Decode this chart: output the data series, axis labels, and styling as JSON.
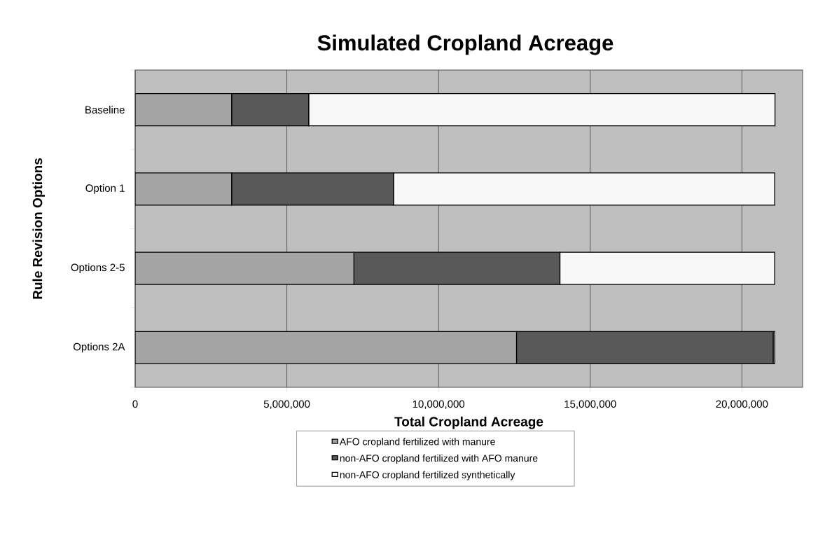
{
  "chart_data": {
    "type": "bar",
    "orientation": "horizontal",
    "stacked": true,
    "title": "Simulated Cropland Acreage",
    "xlabel": "Total Cropland Acreage",
    "ylabel": "Rule Revision Options",
    "categories": [
      "Baseline",
      "Option 1",
      "Options 2-5",
      "Options 2A"
    ],
    "series": [
      {
        "name": "AFO cropland fertilized with manure",
        "color": "#a4a4a4",
        "values": [
          3180000,
          3180000,
          7210000,
          12570000
        ]
      },
      {
        "name": "non-AFO cropland fertilized with AFO manure",
        "color": "#595959",
        "values": [
          2540000,
          5340000,
          6790000,
          8460000
        ]
      },
      {
        "name": "non-AFO cropland fertilized synthetically",
        "color": "#f8f8f8",
        "values": [
          15370000,
          12560000,
          7080000,
          50000
        ]
      }
    ],
    "xlim": [
      0,
      22000000
    ],
    "xticks": [
      0,
      {
        "value": 5000000,
        "label": "5,000,000"
      },
      {
        "value": 10000000,
        "label": "10,000,000"
      },
      {
        "value": 15000000,
        "label": "15,000,000"
      },
      {
        "value": 20000000,
        "label": "20,000,000"
      }
    ],
    "grid": "x",
    "legend": "bottom"
  }
}
